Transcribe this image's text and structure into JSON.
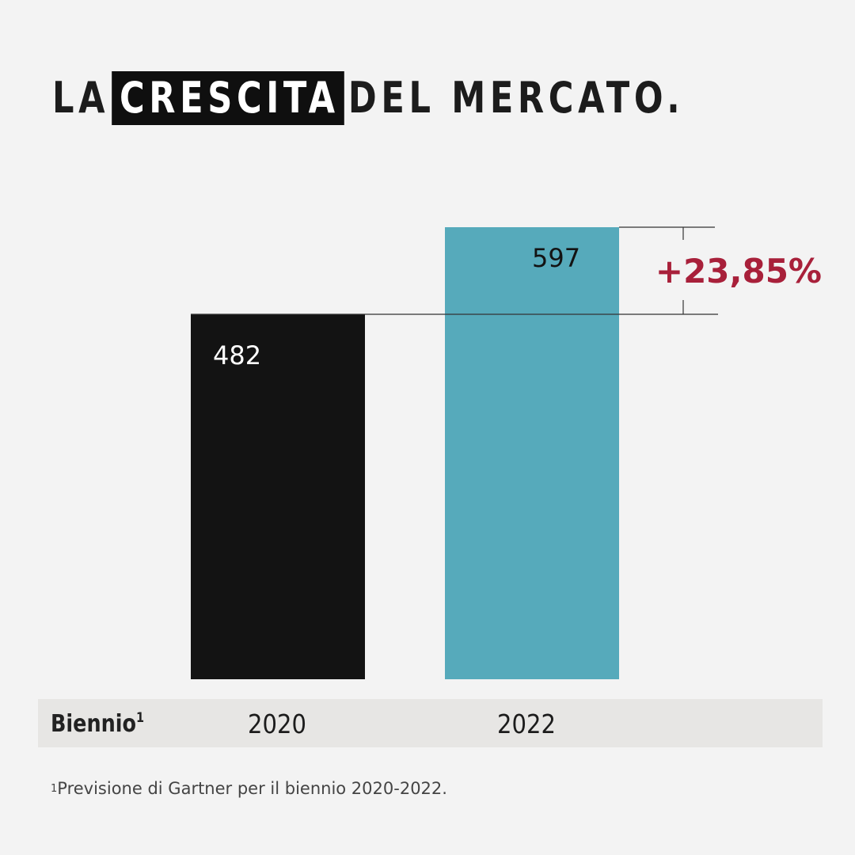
{
  "title": {
    "part1": "LA",
    "highlight": "CRESCITA",
    "part2": "DEL MERCATO."
  },
  "chart_data": {
    "type": "bar",
    "categories": [
      "2020",
      "2022"
    ],
    "values": [
      482,
      597
    ],
    "value_labels": [
      "482",
      "597"
    ],
    "bar_colors": [
      "#131313",
      "#56aabb"
    ],
    "label_colors": [
      "#ffffff",
      "#131313"
    ],
    "xlabel": "Biennio",
    "xlabel_footnote_mark": "1",
    "ylim": [
      0,
      597
    ],
    "growth_annotation": {
      "label": "+23,85%",
      "from": 482,
      "to": 597,
      "color": "#a8203a"
    },
    "grid": false
  },
  "footnote": {
    "mark": "1",
    "text": "Previsione di Gartner per il biennio 2020-2022."
  }
}
